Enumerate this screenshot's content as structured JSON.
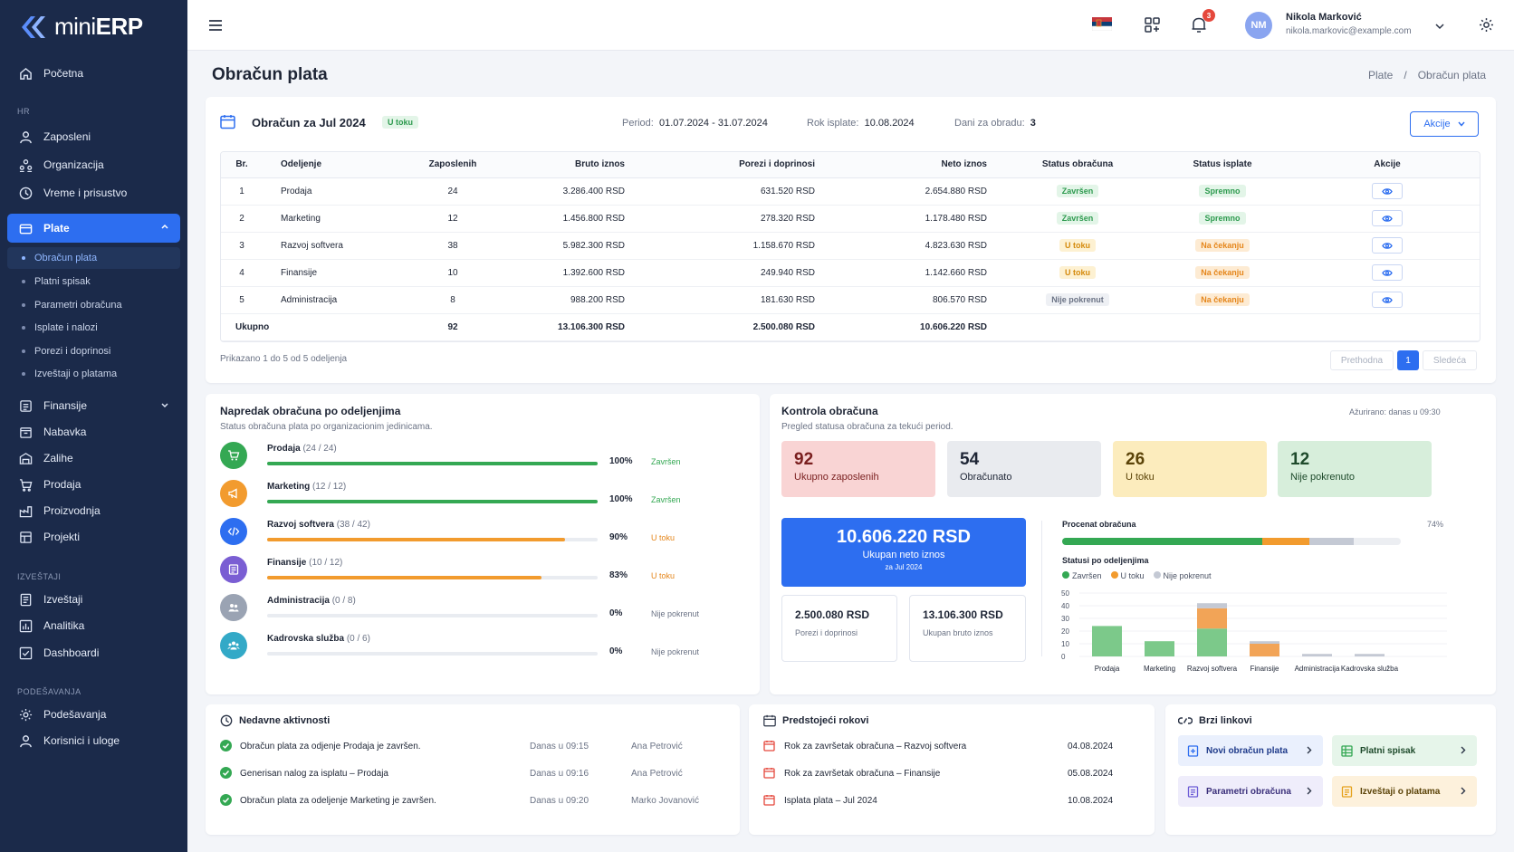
{
  "app": {
    "name_light": "mini",
    "name_bold": "ERP"
  },
  "sidebar": {
    "home": "Početna",
    "sec_hr": "HR",
    "hr_items": [
      "Zaposleni",
      "Organizacija",
      "Vreme i prisustvo"
    ],
    "plate": "Plate",
    "plate_sub": [
      "Obračun plata",
      "Platni spisak",
      "Parametri obračuna",
      "Isplate i nalozi",
      "Porezi i doprinosi",
      "Izveštaji o platama"
    ],
    "finansije": "Finansije",
    "modules": [
      "Nabavka",
      "Zalihe",
      "Prodaja",
      "Proizvodnja",
      "Projekti"
    ],
    "sec_reports": "IZVEŠTAJI",
    "reports": [
      "Izveštaji",
      "Analitika",
      "Dashboardi"
    ],
    "sec_settings": "PODEŠAVANJA",
    "settings": [
      "Podešavanja",
      "Korisnici i uloge"
    ]
  },
  "topbar": {
    "notif_count": "3",
    "user_initials": "NM",
    "user_name": "Nikola Marković",
    "user_email": "nikola.markovic@example.com"
  },
  "page": {
    "title": "Obračun plata",
    "breadcrumb": [
      "Plate",
      "/",
      "Obračun plata"
    ]
  },
  "payroll": {
    "title": "Obračun za Jul 2024",
    "status": "U toku",
    "period_label": "Period:",
    "period_value": "01.07.2024 - 31.07.2024",
    "due_label": "Rok isplate:",
    "due_value": "10.08.2024",
    "days_label": "Dani za obradu:",
    "days_value": "3",
    "actions_button": "Akcije",
    "columns": [
      "Br.",
      "Odeljenje",
      "Zaposlenih",
      "Bruto iznos",
      "Porezi i doprinosi",
      "Neto iznos",
      "Status obračuna",
      "Status isplate",
      "Akcije"
    ],
    "rows": [
      {
        "no": "1",
        "dept": "Prodaja",
        "emp": "24",
        "gross": "3.286.400 RSD",
        "tax": "631.520 RSD",
        "net": "2.654.880 RSD",
        "calc": "Završen",
        "calc_style": "green",
        "pay": "Spremno",
        "pay_style": "green"
      },
      {
        "no": "2",
        "dept": "Marketing",
        "emp": "12",
        "gross": "1.456.800 RSD",
        "tax": "278.320 RSD",
        "net": "1.178.480 RSD",
        "calc": "Završen",
        "calc_style": "green",
        "pay": "Spremno",
        "pay_style": "green"
      },
      {
        "no": "3",
        "dept": "Razvoj softvera",
        "emp": "38",
        "gross": "5.982.300 RSD",
        "tax": "1.158.670 RSD",
        "net": "4.823.630 RSD",
        "calc": "U toku",
        "calc_style": "yellow",
        "pay": "Na čekanju",
        "pay_style": "orange"
      },
      {
        "no": "4",
        "dept": "Finansije",
        "emp": "10",
        "gross": "1.392.600 RSD",
        "tax": "249.940 RSD",
        "net": "1.142.660 RSD",
        "calc": "U toku",
        "calc_style": "yellow",
        "pay": "Na čekanju",
        "pay_style": "orange"
      },
      {
        "no": "5",
        "dept": "Administracija",
        "emp": "8",
        "gross": "988.200 RSD",
        "tax": "181.630 RSD",
        "net": "806.570 RSD",
        "calc": "Nije pokrenut",
        "calc_style": "gray",
        "pay": "Na čekanju",
        "pay_style": "orange"
      }
    ],
    "total": {
      "label": "Ukupno",
      "emp": "92",
      "gross": "13.106.300 RSD",
      "tax": "2.500.080 RSD",
      "net": "10.606.220 RSD"
    },
    "showing": "Prikazano 1 do 5 od 5 odeljenja",
    "prev": "Prethodna",
    "page": "1",
    "next": "Sledeća"
  },
  "progress": {
    "title": "Napredak obračuna po odeljenjima",
    "subtitle": "Status obračuna plata po organizacionim jedinicama.",
    "items": [
      {
        "name": "Prodaja",
        "count": "(24 / 24)",
        "pct_label": "100%",
        "pct": 100,
        "status": "Završen",
        "color": "#34a853",
        "icon": "cart-icon"
      },
      {
        "name": "Marketing",
        "count": "(12 / 12)",
        "pct_label": "100%",
        "pct": 100,
        "status": "Završen",
        "color": "#34a853",
        "icon": "megaphone-icon"
      },
      {
        "name": "Razvoj softvera",
        "count": "(38 / 42)",
        "pct_label": "90%",
        "pct": 90,
        "status": "U toku",
        "color": "#f29b2e",
        "icon": "code-icon"
      },
      {
        "name": "Finansije",
        "count": "(10 / 12)",
        "pct_label": "83%",
        "pct": 83,
        "status": "U toku",
        "color": "#f29b2e",
        "icon": "ledger-icon"
      },
      {
        "name": "Administracija",
        "count": "(0 / 8)",
        "pct_label": "0%",
        "pct": 0,
        "status": "Nije pokrenut",
        "color": "#9aa3b3",
        "icon": "users-icon"
      },
      {
        "name": "Kadrovska služba",
        "count": "(0 / 6)",
        "pct_label": "0%",
        "pct": 0,
        "status": "Nije pokrenut",
        "color": "#9aa3b3",
        "icon": "team-icon"
      }
    ]
  },
  "control": {
    "title": "Kontrola obračuna",
    "subtitle": "Pregled statusa obračuna za tekući period.",
    "updated": "Ažurirano: danas u 09:30",
    "stats": [
      {
        "value": "92",
        "label": "Ukupno zaposlenih"
      },
      {
        "value": "54",
        "label": "Obračunato"
      },
      {
        "value": "26",
        "label": "U toku"
      },
      {
        "value": "12",
        "label": "Nije pokrenuto"
      }
    ],
    "net_total": "10.606.220 RSD",
    "net_label": "Ukupan neto iznos",
    "net_period": "za Jul 2024",
    "tax_total": "2.500.080 RSD",
    "tax_label": "Porezi i doprinosi",
    "gross_total": "13.106.300 RSD",
    "gross_label": "Ukupan bruto iznos",
    "percent_label": "Procenat obračuna",
    "percent_value": "74%",
    "percent_segments": {
      "done": 0.59,
      "in_progress": 0.14,
      "not_started": 0.13
    },
    "status_title": "Statusi po odeljenjima",
    "legend": [
      "Završen",
      "U toku",
      "Nije pokrenut"
    ]
  },
  "chart_data": {
    "type": "bar",
    "categories": [
      "Prodaja",
      "Marketing",
      "Razvoj softvera",
      "Finansije",
      "Administracija",
      "Kadrovska služba"
    ],
    "series": [
      {
        "name": "Završen",
        "values": [
          24,
          12,
          22,
          0,
          0,
          0
        ]
      },
      {
        "name": "U toku",
        "values": [
          0,
          0,
          16,
          10,
          0,
          0
        ]
      },
      {
        "name": "Nije pokrenut",
        "values": [
          0,
          0,
          4,
          2,
          2,
          2
        ]
      }
    ],
    "yticks": [
      "50",
      "40",
      "30",
      "20",
      "10",
      "0"
    ],
    "ylim": [
      0,
      50
    ],
    "stacked": true,
    "colors": [
      "#7cc98a",
      "#f2a457",
      "#c4c9d4"
    ]
  },
  "activities": {
    "title": "Nedavne aktivnosti",
    "items": [
      {
        "text": "Obračun plata za odjenje Prodaja je završen.",
        "time": "Danas u 09:15",
        "user": "Ana Petrović"
      },
      {
        "text": "Generisan nalog za isplatu – Prodaja",
        "time": "Danas u 09:16",
        "user": "Ana Petrović"
      },
      {
        "text": "Obračun plata za odeljenje Marketing je završen.",
        "time": "Danas u 09:20",
        "user": "Marko Jovanović"
      }
    ]
  },
  "deadlines": {
    "title": "Predstojeći rokovi",
    "items": [
      {
        "text": "Rok za završetak obračuna – Razvoj softvera",
        "date": "04.08.2024"
      },
      {
        "text": "Rok za završetak obračuna – Finansije",
        "date": "05.08.2024"
      },
      {
        "text": "Isplata plata – Jul 2024",
        "date": "10.08.2024"
      }
    ]
  },
  "quicklinks": {
    "title": "Brzi linkovi",
    "items": [
      "Novi obračun plata",
      "Platni spisak",
      "Parametri obračuna",
      "Izveštaji o platama"
    ]
  }
}
